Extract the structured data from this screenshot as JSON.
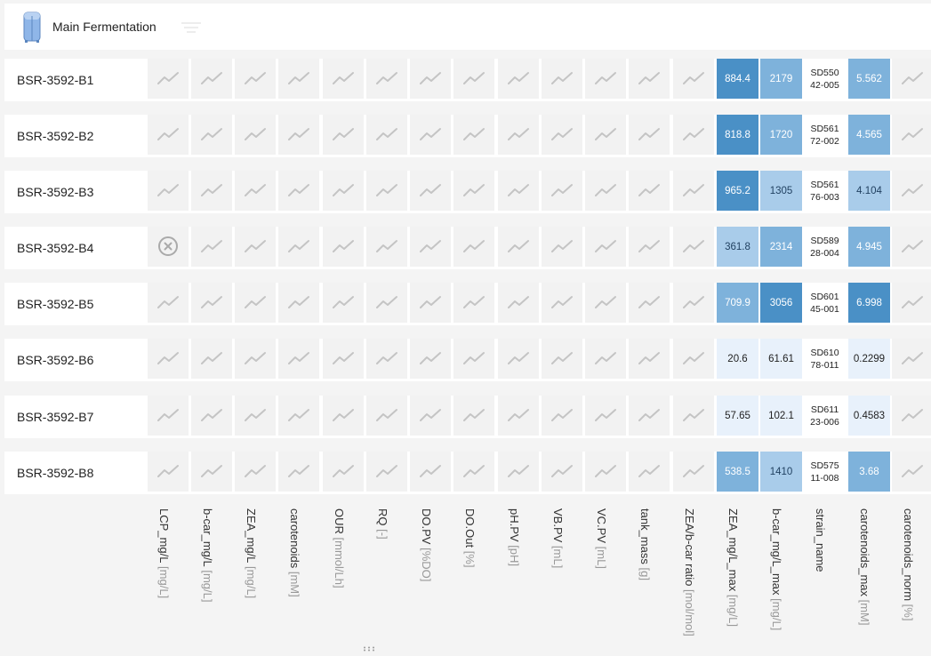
{
  "header": {
    "title": "Main Fermentation",
    "icon": "fermenter-tank-icon",
    "filter_icon": "filter-icon"
  },
  "colors": {
    "dark": "#4a90c6",
    "mid": "#7eb2db",
    "light": "#a9ccea",
    "pale": "#e8f1fb"
  },
  "columns": [
    {
      "name": "LCP_mg/L",
      "unit": "[mg/L]"
    },
    {
      "name": "b-car_mg/L",
      "unit": "[mg/L]"
    },
    {
      "name": "ZEA_mg/L",
      "unit": "[mg/L]"
    },
    {
      "name": "carotenoids",
      "unit": "[mM]"
    },
    {
      "name": "OUR",
      "unit": "[mmol/Lh]"
    },
    {
      "name": "RQ",
      "unit": "[-]"
    },
    {
      "name": "DO.PV",
      "unit": "[%DO]"
    },
    {
      "name": "DO.Out",
      "unit": "[%]"
    },
    {
      "name": "pH.PV",
      "unit": "[pH]"
    },
    {
      "name": "VB.PV",
      "unit": "[mL]"
    },
    {
      "name": "VC.PV",
      "unit": "[mL]"
    },
    {
      "name": "tank_mass",
      "unit": "[g]"
    },
    {
      "name": "ZEA/b-car ratio",
      "unit": "[mol/mol]"
    },
    {
      "name": "ZEA_mg/L_max",
      "unit": "[mg/L]"
    },
    {
      "name": "b-car_mg/L_max",
      "unit": "[mg/L]"
    },
    {
      "name": "strain_name",
      "unit": ""
    },
    {
      "name": "carotenoids_max",
      "unit": "[mM]"
    },
    {
      "name": "carotenoids_norm",
      "unit": "[%]"
    }
  ],
  "rows": [
    {
      "name": "BSR-3592-B1",
      "error_first": false,
      "zea_max": "884.4",
      "zea_level": "dark",
      "bcar_max": "2179",
      "bcar_level": "mid",
      "strain": "SD550\n42-005",
      "carot_max": "5.562",
      "carot_level": "mid"
    },
    {
      "name": "BSR-3592-B2",
      "error_first": false,
      "zea_max": "818.8",
      "zea_level": "dark",
      "bcar_max": "1720",
      "bcar_level": "mid",
      "strain": "SD561\n72-002",
      "carot_max": "4.565",
      "carot_level": "mid"
    },
    {
      "name": "BSR-3592-B3",
      "error_first": false,
      "zea_max": "965.2",
      "zea_level": "dark",
      "bcar_max": "1305",
      "bcar_level": "light",
      "strain": "SD561\n76-003",
      "carot_max": "4.104",
      "carot_level": "light"
    },
    {
      "name": "BSR-3592-B4",
      "error_first": true,
      "zea_max": "361.8",
      "zea_level": "light",
      "bcar_max": "2314",
      "bcar_level": "mid",
      "strain": "SD589\n28-004",
      "carot_max": "4.945",
      "carot_level": "mid"
    },
    {
      "name": "BSR-3592-B5",
      "error_first": false,
      "zea_max": "709.9",
      "zea_level": "mid",
      "bcar_max": "3056",
      "bcar_level": "dark",
      "strain": "SD601\n45-001",
      "carot_max": "6.998",
      "carot_level": "dark"
    },
    {
      "name": "BSR-3592-B6",
      "error_first": false,
      "zea_max": "20.6",
      "zea_level": "pale",
      "bcar_max": "61.61",
      "bcar_level": "pale",
      "strain": "SD610\n78-011",
      "carot_max": "0.2299",
      "carot_level": "pale"
    },
    {
      "name": "BSR-3592-B7",
      "error_first": false,
      "zea_max": "57.65",
      "zea_level": "pale",
      "bcar_max": "102.1",
      "bcar_level": "pale",
      "strain": "SD611\n23-006",
      "carot_max": "0.4583",
      "carot_level": "pale"
    },
    {
      "name": "BSR-3592-B8",
      "error_first": false,
      "zea_max": "538.5",
      "zea_level": "mid",
      "bcar_max": "1410",
      "bcar_level": "light",
      "strain": "SD575\n11-008",
      "carot_max": "3.68",
      "carot_level": "mid"
    }
  ]
}
